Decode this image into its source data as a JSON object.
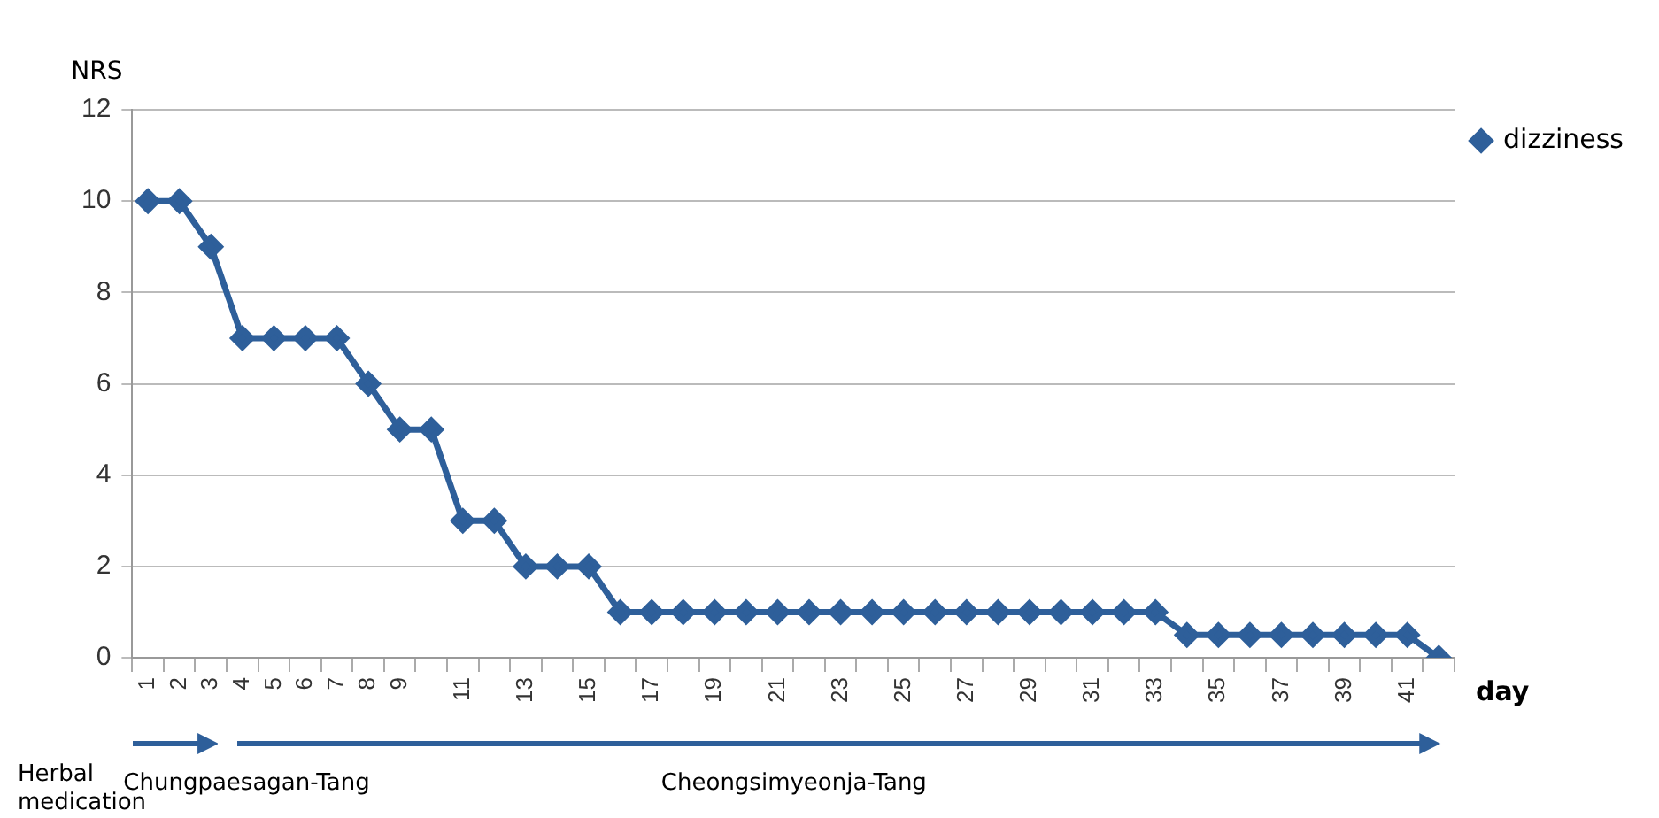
{
  "chart_data": {
    "type": "line",
    "ylabel": "NRS",
    "xlabel": "day",
    "categories": [
      "1",
      "2",
      "3",
      "4",
      "5",
      "6",
      "7",
      "8",
      "9",
      null,
      "11",
      null,
      "13",
      null,
      "15",
      null,
      "17",
      null,
      "19",
      null,
      "21",
      null,
      "23",
      null,
      "25",
      null,
      "27",
      null,
      "29",
      null,
      "31",
      null,
      "33",
      null,
      "35",
      null,
      "37",
      null,
      "39",
      null,
      "41",
      null
    ],
    "series": [
      {
        "name": "dizziness",
        "color": "#2e5f9a",
        "values": [
          10,
          10,
          9,
          7,
          7,
          7,
          7,
          6,
          5,
          5,
          3,
          3,
          2,
          2,
          2,
          1,
          1,
          1,
          1,
          1,
          1,
          1,
          1,
          1,
          1,
          1,
          1,
          1,
          1,
          1,
          1,
          1,
          1,
          0.5,
          0.5,
          0.5,
          0.5,
          0.5,
          0.5,
          0.5,
          0.5,
          0
        ]
      }
    ],
    "ylim": [
      0,
      12
    ],
    "yticks": [
      0,
      2,
      4,
      6,
      8,
      10,
      12
    ],
    "grid": "y",
    "legend": "top right",
    "marker": "diamond",
    "line_style": "solid",
    "annotations": [
      "Herbal medication",
      "Chungpaesagan-Tang",
      "Cheongsimyeonja-Tang"
    ]
  }
}
